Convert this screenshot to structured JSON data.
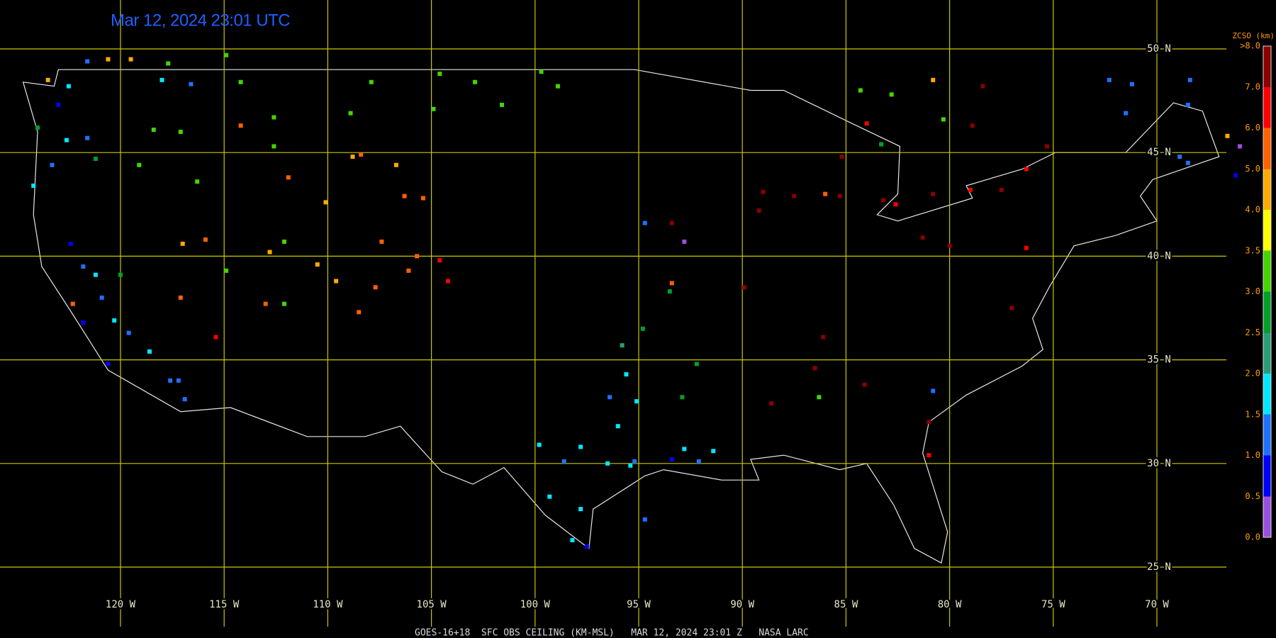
{
  "title": "Mar 12, 2024 23:01 UTC",
  "footer": "GOES-16+18  SFC OBS CEILING (KM-MSL)   MAR 12, 2024 23:01 Z   NASA LARC",
  "lon_lines": [
    {
      "value": -120,
      "label": "120 W"
    },
    {
      "value": -115,
      "label": "115 W"
    },
    {
      "value": -110,
      "label": "110 W"
    },
    {
      "value": -105,
      "label": "105 W"
    },
    {
      "value": -100,
      "label": "100 W"
    },
    {
      "value": -95,
      "label": "95 W"
    },
    {
      "value": -90,
      "label": "90 W"
    },
    {
      "value": -85,
      "label": "85 W"
    },
    {
      "value": -80,
      "label": "80 W"
    },
    {
      "value": -75,
      "label": "75 W"
    },
    {
      "value": -70,
      "label": "70 W"
    }
  ],
  "lat_lines": [
    {
      "value": 50,
      "label": "50 N"
    },
    {
      "value": 45,
      "label": "45 N"
    },
    {
      "value": 40,
      "label": "40 N"
    },
    {
      "value": 35,
      "label": "35 N"
    },
    {
      "value": 30,
      "label": "30 N"
    },
    {
      "value": 25,
      "label": "25 N"
    }
  ],
  "legend": {
    "title": "ZCSO (km)",
    "ticks": [
      {
        "value": 0,
        "label": "0.0"
      },
      {
        "value": 0.5,
        "label": "0.5"
      },
      {
        "value": 1,
        "label": "1.0"
      },
      {
        "value": 1.5,
        "label": "1.5"
      },
      {
        "value": 2,
        "label": "2.0"
      },
      {
        "value": 2.5,
        "label": "2.5"
      },
      {
        "value": 3,
        "label": "3.0"
      },
      {
        "value": 3.5,
        "label": "3.5"
      },
      {
        "value": 4,
        "label": "4.0"
      },
      {
        "value": 5,
        "label": "5.0"
      },
      {
        "value": 6,
        "label": "6.0"
      },
      {
        "value": 7,
        "label": "7.0"
      },
      {
        "value": 8,
        "label": ">8.0"
      }
    ],
    "colors": [
      "#9b4fe0",
      "#0000ff",
      "#2070ff",
      "#00e8ff",
      "#2a9c78",
      "#00a028",
      "#44d400",
      "#ffff00",
      "#ffaa00",
      "#ff6000",
      "#ff0000",
      "#8c0000"
    ]
  },
  "observations": [
    {
      "lon": -120.6,
      "lat": 49.5,
      "km": 4.0
    },
    {
      "lon": -119.5,
      "lat": 49.5,
      "km": 4.0
    },
    {
      "lon": -121.6,
      "lat": 49.4,
      "km": 1.2
    },
    {
      "lon": -117.7,
      "lat": 49.3,
      "km": 3.2
    },
    {
      "lon": -114.9,
      "lat": 49.7,
      "km": 3.2
    },
    {
      "lon": -118,
      "lat": 48.5,
      "km": 1.8
    },
    {
      "lon": -116.6,
      "lat": 48.3,
      "km": 1.2
    },
    {
      "lon": -122.5,
      "lat": 48.2,
      "km": 1.8
    },
    {
      "lon": -123.5,
      "lat": 48.5,
      "km": 4.0
    },
    {
      "lon": -123,
      "lat": 47.3,
      "km": 0.8
    },
    {
      "lon": -124,
      "lat": 46.2,
      "km": 2.7
    },
    {
      "lon": -122.6,
      "lat": 45.6,
      "km": 1.8
    },
    {
      "lon": -121.6,
      "lat": 45.7,
      "km": 1.2
    },
    {
      "lon": -118.4,
      "lat": 46.1,
      "km": 3.2
    },
    {
      "lon": -117.1,
      "lat": 46,
      "km": 3.2
    },
    {
      "lon": -119.1,
      "lat": 44.4,
      "km": 3.2
    },
    {
      "lon": -121.2,
      "lat": 44.7,
      "km": 2.7
    },
    {
      "lon": -123.3,
      "lat": 44.4,
      "km": 1.2
    },
    {
      "lon": -124.2,
      "lat": 43.4,
      "km": 1.8
    },
    {
      "lon": -116.3,
      "lat": 43.6,
      "km": 3.2
    },
    {
      "lon": -114.2,
      "lat": 48.4,
      "km": 3.2
    },
    {
      "lon": -112.6,
      "lat": 46.7,
      "km": 3.2
    },
    {
      "lon": -108.9,
      "lat": 46.9,
      "km": 3.2
    },
    {
      "lon": -107.9,
      "lat": 48.4,
      "km": 3.2
    },
    {
      "lon": -104.6,
      "lat": 48.8,
      "km": 3.2
    },
    {
      "lon": -102.9,
      "lat": 48.4,
      "km": 3.2
    },
    {
      "lon": -101.6,
      "lat": 47.3,
      "km": 3.2
    },
    {
      "lon": -99.7,
      "lat": 48.9,
      "km": 3.2
    },
    {
      "lon": -98.9,
      "lat": 48.2,
      "km": 3.2
    },
    {
      "lon": -104.9,
      "lat": 47.1,
      "km": 3.2
    },
    {
      "lon": -114.2,
      "lat": 46.3,
      "km": 5.2
    },
    {
      "lon": -112.6,
      "lat": 45.3,
      "km": 3.2
    },
    {
      "lon": -111.9,
      "lat": 43.8,
      "km": 5.2
    },
    {
      "lon": -110.1,
      "lat": 42.6,
      "km": 4.0
    },
    {
      "lon": -108.8,
      "lat": 44.8,
      "km": 4.2
    },
    {
      "lon": -108.4,
      "lat": 44.9,
      "km": 5.0
    },
    {
      "lon": -106.7,
      "lat": 44.4,
      "km": 4.2
    },
    {
      "lon": -106.3,
      "lat": 42.9,
      "km": 5.2
    },
    {
      "lon": -105.4,
      "lat": 42.8,
      "km": 5.2
    },
    {
      "lon": -107.4,
      "lat": 40.7,
      "km": 5.0
    },
    {
      "lon": -105.7,
      "lat": 40,
      "km": 5.7
    },
    {
      "lon": -104.6,
      "lat": 39.8,
      "km": 6.2
    },
    {
      "lon": -104.2,
      "lat": 38.8,
      "km": 6.5
    },
    {
      "lon": -106.1,
      "lat": 39.3,
      "km": 5.7
    },
    {
      "lon": -107.7,
      "lat": 38.5,
      "km": 5.2
    },
    {
      "lon": -108.5,
      "lat": 37.3,
      "km": 5.5
    },
    {
      "lon": -109.6,
      "lat": 38.8,
      "km": 4.8
    },
    {
      "lon": -110.5,
      "lat": 39.6,
      "km": 4.2
    },
    {
      "lon": -112.1,
      "lat": 40.7,
      "km": 3.2
    },
    {
      "lon": -112.8,
      "lat": 40.2,
      "km": 4.0
    },
    {
      "lon": -113,
      "lat": 37.7,
      "km": 5.5
    },
    {
      "lon": -112.1,
      "lat": 37.7,
      "km": 3.2
    },
    {
      "lon": -117,
      "lat": 40.6,
      "km": 4.2
    },
    {
      "lon": -115.9,
      "lat": 40.8,
      "km": 5.2
    },
    {
      "lon": -114.9,
      "lat": 39.3,
      "km": 3.2
    },
    {
      "lon": -117.1,
      "lat": 38,
      "km": 5.2
    },
    {
      "lon": -115.4,
      "lat": 36.1,
      "km": 6.8
    },
    {
      "lon": -120,
      "lat": 39.1,
      "km": 2.7
    },
    {
      "lon": -121.8,
      "lat": 39.5,
      "km": 1.2
    },
    {
      "lon": -121.2,
      "lat": 39.1,
      "km": 1.8
    },
    {
      "lon": -122.3,
      "lat": 37.7,
      "km": 5.5
    },
    {
      "lon": -121.8,
      "lat": 36.8,
      "km": 0.8
    },
    {
      "lon": -120.3,
      "lat": 36.9,
      "km": 1.8
    },
    {
      "lon": -119.6,
      "lat": 36.3,
      "km": 1.2
    },
    {
      "lon": -118.6,
      "lat": 35.4,
      "km": 1.8
    },
    {
      "lon": -120.6,
      "lat": 34.8,
      "km": 0.8
    },
    {
      "lon": -117.6,
      "lat": 34,
      "km": 1.2
    },
    {
      "lon": -117.2,
      "lat": 34,
      "km": 1.2
    },
    {
      "lon": -116.9,
      "lat": 33.1,
      "km": 1.2
    },
    {
      "lon": -122.4,
      "lat": 40.6,
      "km": 0.9
    },
    {
      "lon": -120.9,
      "lat": 38,
      "km": 1.2
    },
    {
      "lon": -95.6,
      "lat": 34.3,
      "km": 1.8
    },
    {
      "lon": -96.4,
      "lat": 33.2,
      "km": 1.2
    },
    {
      "lon": -95.1,
      "lat": 33,
      "km": 1.8
    },
    {
      "lon": -96,
      "lat": 31.8,
      "km": 1.8
    },
    {
      "lon": -97.8,
      "lat": 30.8,
      "km": 1.8
    },
    {
      "lon": -99.8,
      "lat": 30.9,
      "km": 1.8
    },
    {
      "lon": -98.6,
      "lat": 30.1,
      "km": 1.2
    },
    {
      "lon": -96.5,
      "lat": 30,
      "km": 1.8
    },
    {
      "lon": -95.4,
      "lat": 29.9,
      "km": 1.8
    },
    {
      "lon": -95.2,
      "lat": 30.1,
      "km": 1.0
    },
    {
      "lon": -99.3,
      "lat": 28.4,
      "km": 1.8
    },
    {
      "lon": -97.8,
      "lat": 27.8,
      "km": 1.8
    },
    {
      "lon": -98.2,
      "lat": 26.3,
      "km": 1.8
    },
    {
      "lon": -97.5,
      "lat": 26,
      "km": 0.8
    },
    {
      "lon": -94.7,
      "lat": 27.3,
      "km": 1.2
    },
    {
      "lon": -92.8,
      "lat": 30.7,
      "km": 1.8
    },
    {
      "lon": -91.4,
      "lat": 30.6,
      "km": 1.8
    },
    {
      "lon": -92.1,
      "lat": 30.1,
      "km": 1.2
    },
    {
      "lon": -93.4,
      "lat": 30.2,
      "km": 0.8
    },
    {
      "lon": -95.8,
      "lat": 35.7,
      "km": 2.2
    },
    {
      "lon": -94.8,
      "lat": 36.5,
      "km": 2.7
    },
    {
      "lon": -92.2,
      "lat": 34.8,
      "km": 2.7
    },
    {
      "lon": -92.9,
      "lat": 33.2,
      "km": 2.7
    },
    {
      "lon": -86.3,
      "lat": 33.2,
      "km": 3.2
    },
    {
      "lon": -80.8,
      "lat": 33.5,
      "km": 1.2
    },
    {
      "lon": -94.7,
      "lat": 41.6,
      "km": 1.2
    },
    {
      "lon": -92.8,
      "lat": 40.7,
      "km": 0.3
    },
    {
      "lon": -93.4,
      "lat": 38.7,
      "km": 5.5
    },
    {
      "lon": -93.5,
      "lat": 38.3,
      "km": 2.7
    },
    {
      "lon": -93.4,
      "lat": 41.6,
      "km": 7.5
    },
    {
      "lon": -89,
      "lat": 43.1,
      "km": 7.5
    },
    {
      "lon": -87.5,
      "lat": 42.9,
      "km": 7.5
    },
    {
      "lon": -86,
      "lat": 43,
      "km": 5.5
    },
    {
      "lon": -85.3,
      "lat": 42.9,
      "km": 7.5
    },
    {
      "lon": -83.2,
      "lat": 42.7,
      "km": 7.0
    },
    {
      "lon": -82.6,
      "lat": 42.5,
      "km": 6.8
    },
    {
      "lon": -80.8,
      "lat": 43,
      "km": 7.5
    },
    {
      "lon": -79,
      "lat": 43.2,
      "km": 6.8
    },
    {
      "lon": -77.5,
      "lat": 43.2,
      "km": 7.5
    },
    {
      "lon": -76.3,
      "lat": 44.2,
      "km": 6.8
    },
    {
      "lon": -78.4,
      "lat": 48.2,
      "km": 7.5
    },
    {
      "lon": -78.9,
      "lat": 46.3,
      "km": 7.5
    },
    {
      "lon": -85.2,
      "lat": 44.8,
      "km": 7.5
    },
    {
      "lon": -76.3,
      "lat": 40.4,
      "km": 6.8
    },
    {
      "lon": -77,
      "lat": 37.5,
      "km": 7.5
    },
    {
      "lon": -80,
      "lat": 40.5,
      "km": 7.5
    },
    {
      "lon": -81.3,
      "lat": 40.9,
      "km": 7.5
    },
    {
      "lon": -86.1,
      "lat": 36.1,
      "km": 7.5
    },
    {
      "lon": -86.5,
      "lat": 34.6,
      "km": 7.5
    },
    {
      "lon": -88.6,
      "lat": 32.9,
      "km": 7.5
    },
    {
      "lon": -84.1,
      "lat": 33.8,
      "km": 7.5
    },
    {
      "lon": -81,
      "lat": 32,
      "km": 7.5
    },
    {
      "lon": -81,
      "lat": 30.4,
      "km": 6.8
    },
    {
      "lon": -89.9,
      "lat": 38.5,
      "km": 7.5
    },
    {
      "lon": -89.2,
      "lat": 42.2,
      "km": 7.5
    },
    {
      "lon": -84,
      "lat": 46.4,
      "km": 6.5
    },
    {
      "lon": -75.3,
      "lat": 45.3,
      "km": 7.5
    },
    {
      "lon": -72.3,
      "lat": 48.5,
      "km": 1.0
    },
    {
      "lon": -71.2,
      "lat": 48.3,
      "km": 1.0
    },
    {
      "lon": -68.4,
      "lat": 48.5,
      "km": 1.0
    },
    {
      "lon": -71.5,
      "lat": 46.9,
      "km": 1.2
    },
    {
      "lon": -68.5,
      "lat": 47.3,
      "km": 1.2
    },
    {
      "lon": -68.5,
      "lat": 44.5,
      "km": 1.2
    },
    {
      "lon": -66.6,
      "lat": 45.8,
      "km": 4.0
    },
    {
      "lon": -66,
      "lat": 45.3,
      "km": 0.3
    },
    {
      "lon": -66.2,
      "lat": 43.9,
      "km": 0.9
    },
    {
      "lon": -68.9,
      "lat": 44.8,
      "km": 1.2
    },
    {
      "lon": -80.8,
      "lat": 48.5,
      "km": 4.0
    },
    {
      "lon": -80.3,
      "lat": 46.6,
      "km": 3.2
    },
    {
      "lon": -84.3,
      "lat": 48,
      "km": 3.2
    },
    {
      "lon": -82.8,
      "lat": 47.8,
      "km": 3.2
    },
    {
      "lon": -83.3,
      "lat": 45.4,
      "km": 2.7
    }
  ]
}
